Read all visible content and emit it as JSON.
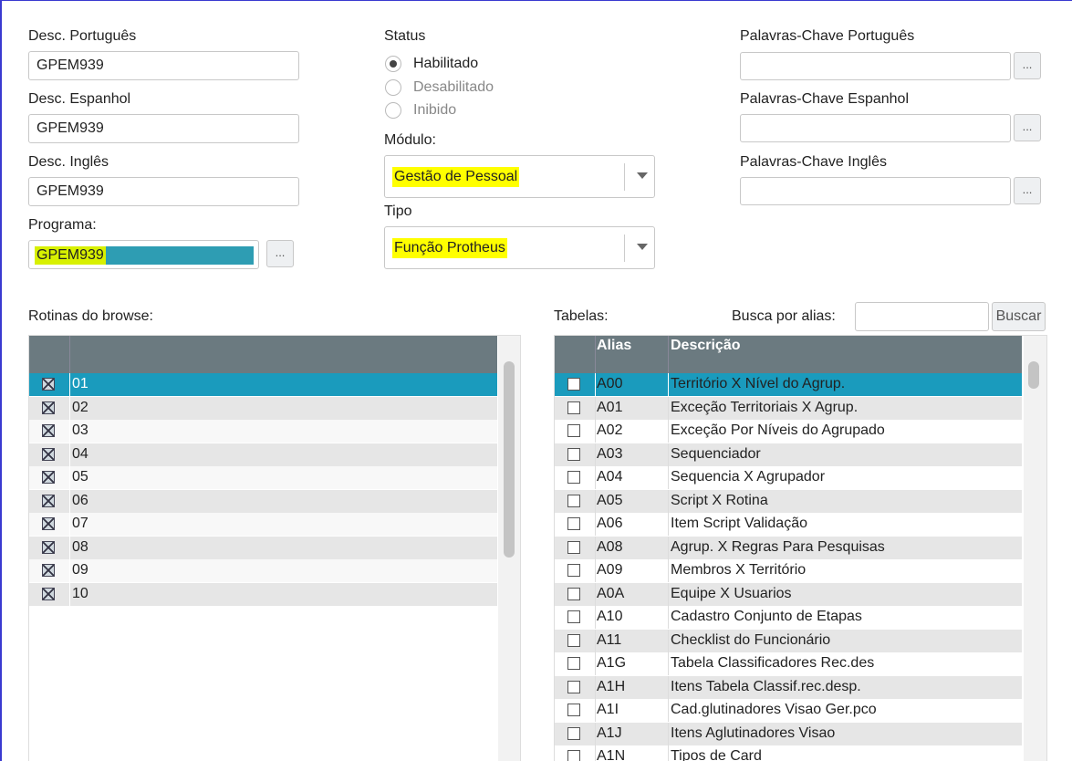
{
  "fields": [
    {
      "label": "Desc. Português",
      "value": "GPEM939"
    },
    {
      "label": "Desc. Espanhol",
      "value": "GPEM939"
    },
    {
      "label": "Desc. Inglês",
      "value": "GPEM939"
    }
  ],
  "program": {
    "label": "Programa:",
    "value": "GPEM939"
  },
  "ellipsis": "...",
  "status": {
    "label": "Status",
    "options": [
      "Habilitado",
      "Desabilitado",
      "Inibido"
    ],
    "selected": 0
  },
  "modulo": {
    "label": "Módulo:",
    "value": "Gestão de Pessoal"
  },
  "tipo": {
    "label": "Tipo",
    "value": "Função Protheus"
  },
  "keywords": [
    "Palavras-Chave Português",
    "Palavras-Chave Espanhol",
    "Palavras-Chave Inglês"
  ],
  "rotinas": {
    "label": "Rotinas do browse:",
    "rows": [
      "01",
      "02",
      "03",
      "04",
      "05",
      "06",
      "07",
      "08",
      "09",
      "10"
    ],
    "selected": 0
  },
  "tabelas": {
    "label": "Tabelas:",
    "search_label": "Busca por alias:",
    "search_button": "Buscar",
    "columns": [
      "Alias",
      "Descrição"
    ],
    "selected": 0,
    "rows": [
      [
        "A00",
        "Território X Nível do Agrup."
      ],
      [
        "A01",
        "Exceção Territoriais X Agrup."
      ],
      [
        "A02",
        "Exceção Por Níveis do Agrupado"
      ],
      [
        "A03",
        "Sequenciador"
      ],
      [
        "A04",
        "Sequencia X Agrupador"
      ],
      [
        "A05",
        "Script X Rotina"
      ],
      [
        "A06",
        "Item Script Validação"
      ],
      [
        "A08",
        "Agrup. X Regras Para Pesquisas"
      ],
      [
        "A09",
        "Membros X Território"
      ],
      [
        "A0A",
        "Equipe X Usuarios"
      ],
      [
        "A10",
        "Cadastro Conjunto de Etapas"
      ],
      [
        "A11",
        "Checklist do Funcionário"
      ],
      [
        "A1G",
        "Tabela Classificadores Rec.des"
      ],
      [
        "A1H",
        "Itens Tabela Classif.rec.desp."
      ],
      [
        "A1I",
        "Cad.glutinadores Visao Ger.pco"
      ],
      [
        "A1J",
        "Itens Aglutinadores Visao"
      ],
      [
        "A1N",
        "Tipos de Card"
      ]
    ]
  }
}
